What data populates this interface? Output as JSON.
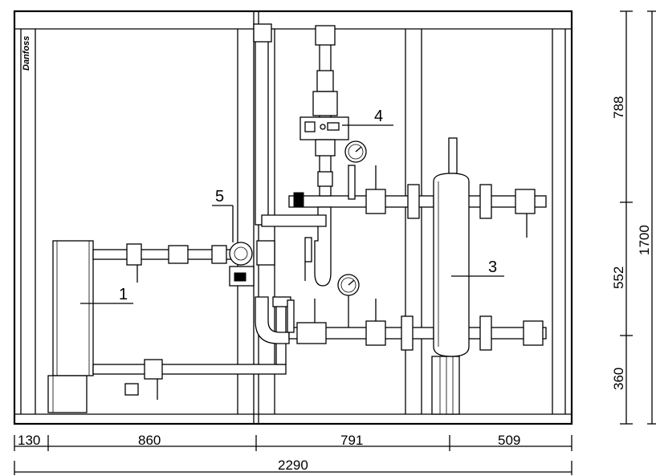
{
  "logo": {
    "text": "Danfoss"
  },
  "callouts": [
    {
      "id": "1",
      "label": "1"
    },
    {
      "id": "3",
      "label": "3"
    },
    {
      "id": "4",
      "label": "4"
    },
    {
      "id": "5",
      "label": "5"
    }
  ],
  "dimensions": {
    "horizontal": [
      "130",
      "860",
      "791",
      "509"
    ],
    "total_width": "2290",
    "vertical": [
      "788",
      "552",
      "360"
    ],
    "total_height": "1700"
  }
}
